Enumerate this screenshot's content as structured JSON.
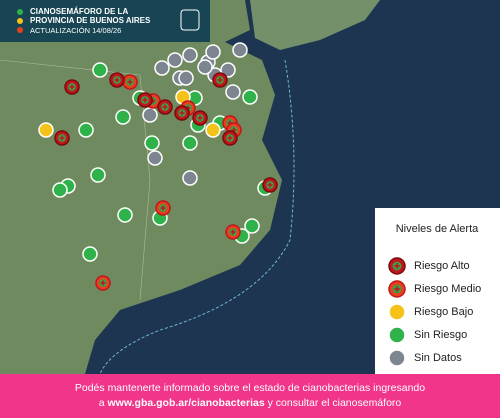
{
  "header": {
    "title_line1": "CIANOSEMÁFORO DE LA",
    "title_line2": "PROVINCIA DE BUENOS AIRES",
    "update": "ACTUALIZACIÓN 14/08/26"
  },
  "legend": {
    "title": "Niveles de Alerta",
    "items": [
      {
        "label": "Riesgo Alto",
        "color": "#c0161c"
      },
      {
        "label": "Riesgo Medio",
        "color": "#e8401c"
      },
      {
        "label": "Riesgo Bajo",
        "color": "#f5c21a"
      },
      {
        "label": "Sin Riesgo",
        "color": "#2fb24a"
      },
      {
        "label": "Sin Datos",
        "color": "#7d8591"
      }
    ]
  },
  "footer": {
    "line1": "Podés mantenerte informado sobre el estado de cianobacterias ingresando",
    "prefix": "a",
    "link": "www.gba.gob.ar/cianobacterias",
    "suffix": "y consultar el cianosemáforo"
  }
}
